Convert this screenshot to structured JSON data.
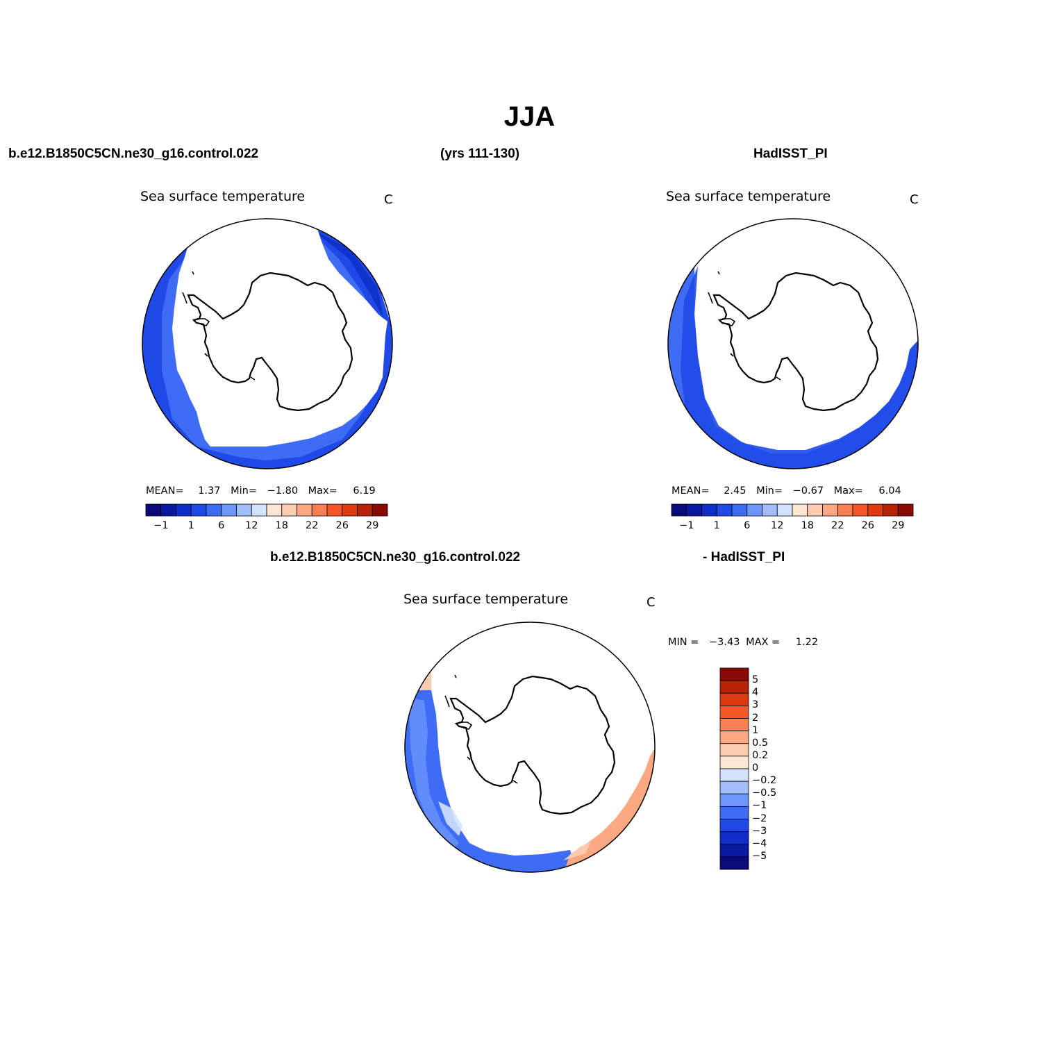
{
  "title": "JJA",
  "header": {
    "case_name": "b.e12.B1850C5CN.ne30_g16.control.022",
    "years": "(yrs 111-130)",
    "obs_name": "HadISST_PI"
  },
  "diff_header": {
    "left": "b.e12.B1850C5CN.ne30_g16.control.022",
    "right": "- HadISST_PI"
  },
  "panels": [
    {
      "id": "model",
      "title": "Sea surface temperature",
      "units": "C",
      "stats": {
        "mean_label": "MEAN=",
        "mean": "1.37",
        "min_label": "Min=",
        "min": "−1.80",
        "max_label": "Max=",
        "max": "6.19"
      }
    },
    {
      "id": "obs",
      "title": "Sea surface temperature",
      "units": "C",
      "stats": {
        "mean_label": "MEAN=",
        "mean": "2.45",
        "min_label": "Min=",
        "min": "−0.67",
        "max_label": "Max=",
        "max": "6.04"
      }
    },
    {
      "id": "diff",
      "title": "Sea surface temperature",
      "units": "C",
      "stats": {
        "min_label": "MIN =",
        "min": "−3.43",
        "max_label": "MAX =",
        "max": "1.22"
      }
    }
  ],
  "sst_colorbar": {
    "colors": [
      "#0a0a78",
      "#0a1aa0",
      "#0f2fc8",
      "#1f4ae8",
      "#3f6cf5",
      "#6f97fa",
      "#a3bdfb",
      "#d3e2fd",
      "#fde6d4",
      "#fccbb0",
      "#fba883",
      "#fa7f55",
      "#f4582a",
      "#e03a12",
      "#b82506",
      "#8a0b05"
    ],
    "labels": [
      "−1",
      "1",
      "6",
      "12",
      "18",
      "22",
      "26",
      "29"
    ]
  },
  "diff_colorbar": {
    "colors": [
      "#8a0b05",
      "#b82506",
      "#e03a12",
      "#f4582a",
      "#fa7f55",
      "#fba883",
      "#fccbb0",
      "#fde6d4",
      "#d3e2fd",
      "#a3bdfb",
      "#6f97fa",
      "#3f6cf5",
      "#1f4ae8",
      "#0f2fc8",
      "#0a1aa0",
      "#0a0a78"
    ],
    "labels": [
      "5",
      "4",
      "3",
      "2",
      "1",
      "0.5",
      "0.2",
      "0",
      "−0.2",
      "−0.5",
      "−1",
      "−2",
      "−3",
      "−4",
      "−5"
    ]
  }
}
